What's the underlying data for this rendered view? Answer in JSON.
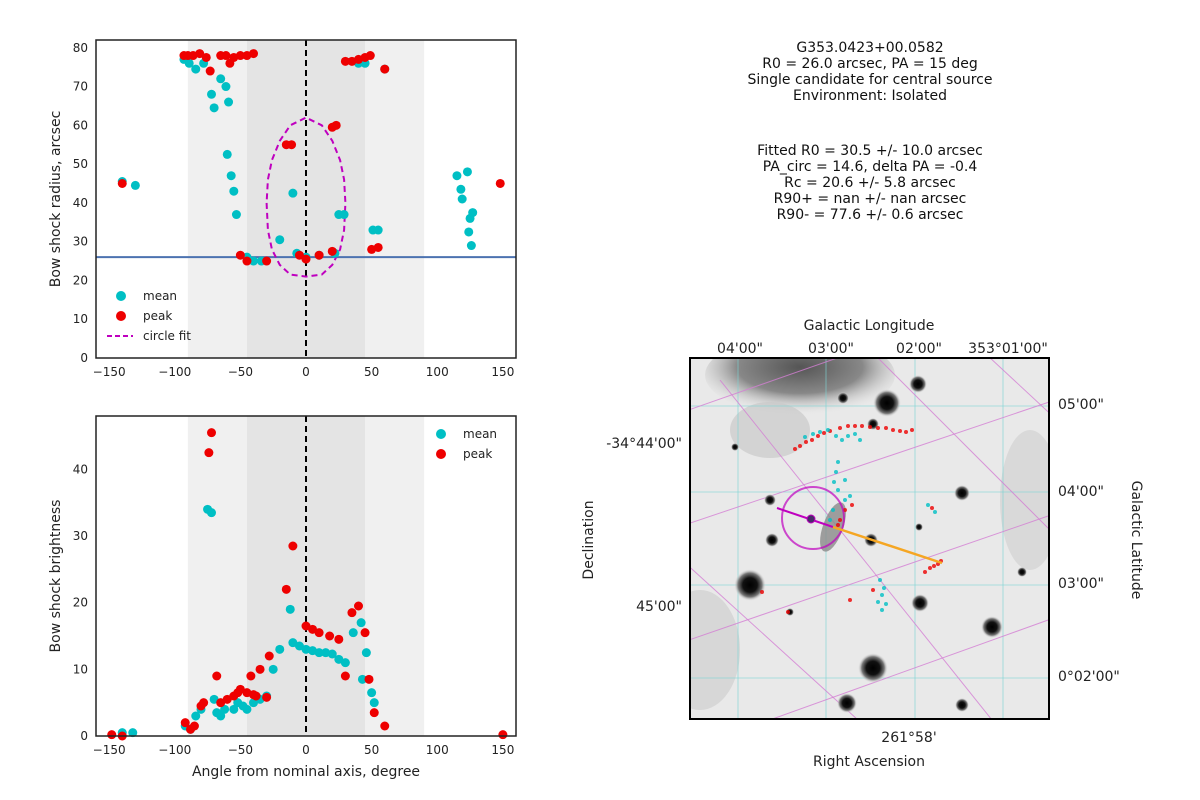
{
  "info": {
    "source_name": "G353.0423+00.0582",
    "r0_pa": "R0 = 26.0 arcsec, PA = 15 deg",
    "candidate": "Single candidate for central source",
    "environment": "Environment: Isolated",
    "fitted_r0": "Fitted R0 = 30.5 +/- 10.0 arcsec",
    "pa_circ": "PA_circ = 14.6, delta PA = -0.4",
    "rc": "Rc = 20.6 +/- 5.8 arcsec",
    "r90_plus": "R90+ = nan +/- nan arcsec",
    "r90_minus": "R90- = 77.6 +/- 0.6 arcsec"
  },
  "colors": {
    "mean": "#00bfc4",
    "peak": "#ee0000",
    "circle_fit": "#bf00bf",
    "r0_line": "#4c72b0",
    "band_outer": "#f0f0f0",
    "band_inner": "#e4e4e4"
  },
  "chart_data": [
    {
      "type": "scatter",
      "ylabel": "Bow shock radius, arcsec",
      "xlim": [
        -160,
        160
      ],
      "ylim": [
        0,
        82
      ],
      "xticks": [
        -150,
        -100,
        -50,
        0,
        50,
        100,
        150
      ],
      "yticks": [
        0,
        10,
        20,
        30,
        40,
        50,
        60,
        70,
        80
      ],
      "shaded_bands": [
        {
          "x0": -90,
          "x1": 90,
          "shade": "outer"
        },
        {
          "x0": -45,
          "x1": 45,
          "shade": "inner"
        }
      ],
      "vertical_line_x": 0,
      "hline_y": 26.0,
      "legend": {
        "position": "lower-left",
        "entries": [
          "mean",
          "peak",
          "circle fit"
        ]
      },
      "series": [
        {
          "name": "mean",
          "points": [
            [
              -140,
              45.5
            ],
            [
              -130,
              44.5
            ],
            [
              -93,
              77
            ],
            [
              -89,
              76
            ],
            [
              -84,
              74.5
            ],
            [
              -78,
              76
            ],
            [
              -72,
              68
            ],
            [
              -70,
              64.5
            ],
            [
              -65,
              72
            ],
            [
              -61,
              70
            ],
            [
              -59,
              66
            ],
            [
              -60,
              52.5
            ],
            [
              -57,
              47
            ],
            [
              -55,
              43
            ],
            [
              -53,
              37
            ],
            [
              -45,
              26
            ],
            [
              -40,
              25
            ],
            [
              -34,
              25
            ],
            [
              -20,
              30.5
            ],
            [
              -10,
              42.5
            ],
            [
              -7,
              27
            ],
            [
              0,
              26
            ],
            [
              10,
              26.5
            ],
            [
              22,
              27
            ],
            [
              25,
              37
            ],
            [
              29,
              37
            ],
            [
              40,
              76
            ],
            [
              45,
              76
            ],
            [
              51,
              33
            ],
            [
              55,
              33
            ],
            [
              60,
              74.5
            ],
            [
              115,
              47
            ],
            [
              118,
              43.5
            ],
            [
              119,
              41
            ],
            [
              123,
              48
            ],
            [
              124,
              32.5
            ],
            [
              125,
              36
            ],
            [
              126,
              29
            ],
            [
              127,
              37.5
            ]
          ]
        },
        {
          "name": "peak",
          "points": [
            [
              -93,
              78
            ],
            [
              -90,
              78
            ],
            [
              -86,
              78
            ],
            [
              -81,
              78.5
            ],
            [
              -76,
              77.5
            ],
            [
              -73,
              74
            ],
            [
              -65,
              78
            ],
            [
              -61,
              78
            ],
            [
              -58,
              76
            ],
            [
              -55,
              77.5
            ],
            [
              -50,
              78
            ],
            [
              -45,
              78
            ],
            [
              -40,
              78.5
            ],
            [
              -140,
              45
            ],
            [
              -50,
              26.5
            ],
            [
              -45,
              25
            ],
            [
              -30,
              25
            ],
            [
              -15,
              55
            ],
            [
              -11,
              55
            ],
            [
              -5,
              26.5
            ],
            [
              0,
              25.5
            ],
            [
              10,
              26.5
            ],
            [
              20,
              27.5
            ],
            [
              20,
              59.5
            ],
            [
              23,
              60
            ],
            [
              30,
              76.5
            ],
            [
              35,
              76.5
            ],
            [
              40,
              77
            ],
            [
              45,
              77.5
            ],
            [
              49,
              78
            ],
            [
              50,
              28
            ],
            [
              55,
              28.5
            ],
            [
              60,
              74.5
            ],
            [
              148,
              45
            ]
          ]
        }
      ],
      "circle_fit_curve": [
        [
          -30,
          40
        ],
        [
          -29,
          33
        ],
        [
          -26,
          28
        ],
        [
          -20,
          24
        ],
        [
          -12,
          21.5
        ],
        [
          0,
          21
        ],
        [
          12,
          21.5
        ],
        [
          20,
          24
        ],
        [
          26,
          28
        ],
        [
          29,
          33
        ],
        [
          30,
          40
        ],
        [
          29,
          46
        ],
        [
          26,
          51
        ],
        [
          20,
          56
        ],
        [
          12,
          60
        ],
        [
          0,
          62
        ],
        [
          -12,
          60
        ],
        [
          -20,
          56
        ],
        [
          -26,
          51
        ],
        [
          -29,
          46
        ],
        [
          -30,
          40
        ]
      ]
    },
    {
      "type": "scatter",
      "xlabel": "Angle from nominal axis, degree",
      "ylabel": "Bow shock brightness",
      "xlim": [
        -160,
        160
      ],
      "ylim": [
        0,
        48
      ],
      "xticks": [
        -150,
        -100,
        -50,
        0,
        50,
        100,
        150
      ],
      "yticks": [
        0,
        10,
        20,
        30,
        40
      ],
      "shaded_bands": [
        {
          "x0": -90,
          "x1": 90,
          "shade": "outer"
        },
        {
          "x0": -45,
          "x1": 45,
          "shade": "inner"
        }
      ],
      "vertical_line_x": 0,
      "legend": {
        "position": "top-right",
        "entries": [
          "mean",
          "peak"
        ]
      },
      "series": [
        {
          "name": "mean",
          "points": [
            [
              -140,
              0.5
            ],
            [
              -132,
              0.5
            ],
            [
              -92,
              1.5
            ],
            [
              -88,
              1
            ],
            [
              -84,
              3
            ],
            [
              -80,
              4
            ],
            [
              -75,
              34
            ],
            [
              -72,
              33.5
            ],
            [
              -70,
              5.5
            ],
            [
              -68,
              3.5
            ],
            [
              -65,
              3
            ],
            [
              -62,
              4
            ],
            [
              -55,
              4
            ],
            [
              -52,
              5
            ],
            [
              -48,
              4.5
            ],
            [
              -45,
              4
            ],
            [
              -40,
              5
            ],
            [
              -35,
              5.5
            ],
            [
              -30,
              6
            ],
            [
              -25,
              10
            ],
            [
              -20,
              13
            ],
            [
              -12,
              19
            ],
            [
              -10,
              14
            ],
            [
              -5,
              13.5
            ],
            [
              0,
              13
            ],
            [
              5,
              12.8
            ],
            [
              10,
              12.5
            ],
            [
              15,
              12.5
            ],
            [
              20,
              12.3
            ],
            [
              25,
              11.5
            ],
            [
              30,
              11
            ],
            [
              36,
              15.5
            ],
            [
              42,
              17
            ],
            [
              43,
              8.5
            ],
            [
              46,
              12.5
            ],
            [
              50,
              6.5
            ],
            [
              52,
              5
            ]
          ]
        },
        {
          "name": "peak",
          "points": [
            [
              -148,
              0.2
            ],
            [
              -140,
              0
            ],
            [
              -92,
              2
            ],
            [
              -88,
              1
            ],
            [
              -85,
              1.5
            ],
            [
              -80,
              4.5
            ],
            [
              -78,
              5
            ],
            [
              -74,
              42.5
            ],
            [
              -72,
              45.5
            ],
            [
              -68,
              9
            ],
            [
              -65,
              5
            ],
            [
              -60,
              5.5
            ],
            [
              -55,
              6
            ],
            [
              -52,
              6.5
            ],
            [
              -50,
              7
            ],
            [
              -45,
              6.5
            ],
            [
              -42,
              9
            ],
            [
              -40,
              6.2
            ],
            [
              -38,
              6
            ],
            [
              -35,
              10
            ],
            [
              -30,
              5.8
            ],
            [
              -28,
              12
            ],
            [
              -15,
              22
            ],
            [
              -10,
              28.5
            ],
            [
              0,
              16.5
            ],
            [
              5,
              16
            ],
            [
              10,
              15.5
            ],
            [
              18,
              15
            ],
            [
              25,
              14.5
            ],
            [
              30,
              9
            ],
            [
              35,
              18.5
            ],
            [
              40,
              19.5
            ],
            [
              45,
              15.5
            ],
            [
              48,
              8.5
            ],
            [
              52,
              3.5
            ],
            [
              60,
              1.5
            ],
            [
              150,
              0.2
            ]
          ]
        }
      ]
    }
  ],
  "map": {
    "top_axis_label": "Galactic Longitude",
    "top_ticks": [
      "04'00\"",
      "03'00\"",
      "02'00\"",
      "353°01'00\""
    ],
    "right_axis_label": "Galactic Latitude",
    "right_ticks": [
      "05'00\"",
      "04'00\"",
      "03'00\"",
      "0°02'00\""
    ],
    "left_axis_label": "Declination",
    "left_ticks": [
      "-34°44'00\"",
      "45'00\""
    ],
    "bottom_axis_label": "Right Ascension",
    "bottom_ticks": [
      "261°58'"
    ]
  }
}
